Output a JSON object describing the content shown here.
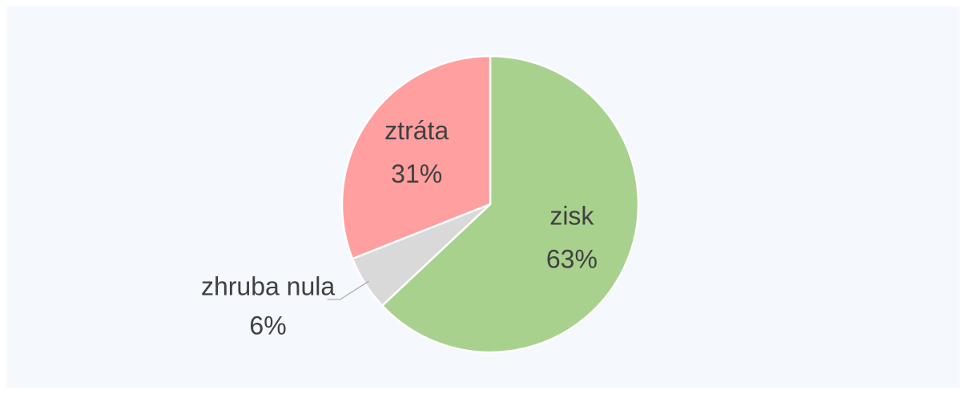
{
  "chart_data": {
    "type": "pie",
    "categories": [
      "zisk",
      "zhruba nula",
      "ztráta"
    ],
    "values": [
      63,
      6,
      31
    ],
    "value_labels": [
      "63%",
      "6%",
      "31%"
    ],
    "colors": [
      "#a9d18e",
      "#d9d9d9",
      "#ff9f9f"
    ]
  }
}
